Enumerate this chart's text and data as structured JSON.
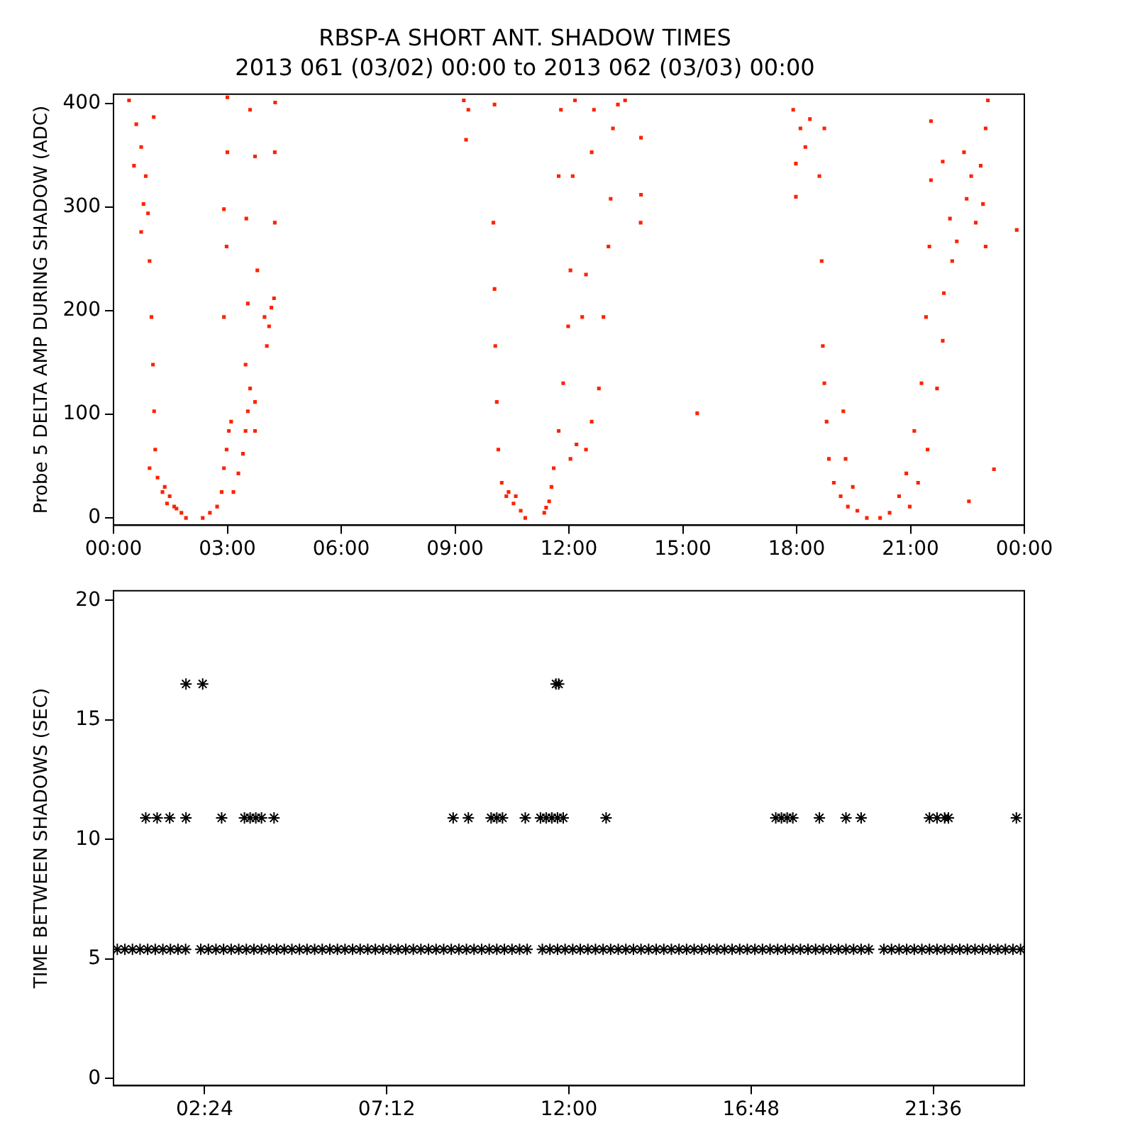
{
  "chart_data": [
    {
      "type": "scatter",
      "title": "RBSP-A SHORT ANT. SHADOW TIMES",
      "subtitle": "2013 061 (03/02) 00:00 to 2013 062 (03/03) 00:00",
      "ylabel": "Probe 5 DELTA AMP DURING SHADOW (ADC)",
      "xlim": [
        0,
        24
      ],
      "xticks": [
        {
          "value": 0,
          "label": "00:00"
        },
        {
          "value": 3,
          "label": "03:00"
        },
        {
          "value": 6,
          "label": "06:00"
        },
        {
          "value": 9,
          "label": "09:00"
        },
        {
          "value": 12,
          "label": "12:00"
        },
        {
          "value": 15,
          "label": "15:00"
        },
        {
          "value": 18,
          "label": "18:00"
        },
        {
          "value": 21,
          "label": "21:00"
        },
        {
          "value": 24,
          "label": "00:00"
        }
      ],
      "ylim": [
        -7,
        409
      ],
      "yticks": [
        0,
        100,
        200,
        300,
        400
      ],
      "grid": false,
      "marker": "square",
      "color": "#ff2200",
      "x": [
        0.41,
        0.6,
        0.73,
        0.54,
        0.85,
        0.79,
        0.91,
        0.73,
        0.95,
        1.0,
        1.04,
        1.07,
        1.1,
        1.16,
        1.29,
        1.41,
        1.6,
        1.79,
        1.91,
        1.35,
        1.48,
        1.66,
        1.06,
        0.95,
        2.35,
        2.54,
        2.73,
        2.85,
        2.91,
        2.98,
        3.04,
        3.1,
        3.16,
        3.29,
        3.41,
        3.48,
        3.54,
        3.6,
        3.48,
        3.54,
        3.5,
        3.6,
        2.91,
        2.98,
        3.0,
        3.0,
        2.91,
        3.98,
        4.1,
        4.04,
        4.16,
        4.23,
        3.73,
        3.73,
        3.79,
        4.25,
        4.25,
        4.26,
        3.73,
        9.23,
        9.35,
        9.29,
        10.04,
        10.01,
        10.04,
        10.06,
        10.1,
        10.14,
        10.23,
        10.35,
        10.54,
        10.73,
        10.85,
        10.41,
        10.6,
        11.35,
        11.48,
        11.54,
        11.4,
        11.6,
        11.73,
        11.85,
        11.98,
        12.04,
        12.1,
        12.16,
        11.79,
        11.73,
        12.04,
        12.2,
        12.45,
        12.35,
        12.45,
        12.6,
        12.66,
        12.6,
        12.79,
        12.91,
        13.04,
        13.1,
        13.16,
        13.29,
        13.48,
        13.9,
        13.9,
        13.89,
        15.38,
        17.91,
        18.1,
        17.98,
        17.98,
        18.23,
        18.35,
        18.6,
        18.66,
        18.69,
        18.73,
        18.79,
        18.85,
        18.98,
        19.16,
        19.35,
        19.6,
        19.85,
        19.23,
        19.29,
        19.48,
        18.73,
        20.2,
        20.45,
        20.7,
        20.89,
        21.1,
        21.29,
        21.41,
        21.5,
        21.54,
        21.54,
        20.98,
        21.2,
        21.45,
        21.7,
        21.85,
        21.88,
        22.04,
        22.1,
        22.22,
        22.41,
        22.48,
        22.6,
        22.72,
        22.85,
        22.91,
        22.98,
        23.04,
        22.98,
        23.2,
        22.54,
        23.8,
        21.85
      ],
      "values": [
        403,
        380,
        358,
        340,
        330,
        303,
        294,
        276,
        248,
        194,
        148,
        103,
        66,
        39,
        25,
        14,
        11,
        5,
        0,
        30,
        21,
        9,
        387,
        48,
        0,
        5,
        11,
        25,
        48,
        66,
        84,
        93,
        25,
        43,
        62,
        84,
        103,
        125,
        148,
        207,
        289,
        394,
        194,
        262,
        353,
        406,
        298,
        194,
        185,
        166,
        203,
        212,
        84,
        112,
        239,
        285,
        353,
        401,
        349,
        403,
        394,
        365,
        399,
        285,
        221,
        166,
        112,
        66,
        34,
        21,
        14,
        7,
        0,
        25,
        21,
        5,
        16,
        30,
        10,
        48,
        84,
        130,
        185,
        239,
        330,
        403,
        394,
        330,
        57,
        71,
        66,
        194,
        235,
        353,
        394,
        93,
        125,
        194,
        262,
        308,
        376,
        399,
        403,
        367,
        312,
        285,
        101,
        394,
        376,
        342,
        310,
        358,
        385,
        330,
        248,
        166,
        130,
        93,
        57,
        34,
        21,
        11,
        7,
        0,
        103,
        57,
        30,
        376,
        0,
        5,
        21,
        43,
        84,
        130,
        194,
        262,
        326,
        383,
        11,
        34,
        66,
        125,
        171,
        217,
        289,
        248,
        267,
        353,
        308,
        330,
        285,
        340,
        303,
        376,
        403,
        262,
        47,
        16,
        278,
        344
      ]
    },
    {
      "type": "scatter",
      "ylabel": "TIME BETWEEN SHADOWS (SEC)",
      "xlim": [
        0,
        24
      ],
      "xticks": [
        {
          "value": 2.4,
          "label": "02:24"
        },
        {
          "value": 7.2,
          "label": "07:12"
        },
        {
          "value": 12,
          "label": "12:00"
        },
        {
          "value": 16.8,
          "label": "16:48"
        },
        {
          "value": 21.6,
          "label": "21:36"
        }
      ],
      "ylim": [
        -0.3,
        20.4
      ],
      "yticks": [
        0,
        5,
        10,
        15,
        20
      ],
      "grid": false,
      "marker": "cross",
      "series": [
        {
          "color": "#000000",
          "x": [
            0.1,
            0.3,
            0.5,
            0.7,
            0.9,
            1.1,
            1.3,
            1.5,
            1.7,
            1.9,
            2.3,
            2.5,
            2.7,
            2.9,
            3.1,
            3.3,
            3.5,
            3.7,
            3.9,
            4.1,
            4.3,
            4.5,
            4.7,
            4.9,
            5.1,
            5.3,
            5.5,
            5.7,
            5.9,
            6.1,
            6.3,
            6.5,
            6.7,
            6.9,
            7.1,
            7.3,
            7.5,
            7.7,
            7.9,
            8.1,
            8.3,
            8.5,
            8.7,
            8.9,
            9.1,
            9.3,
            9.5,
            9.7,
            9.9,
            10.1,
            10.3,
            10.5,
            10.7,
            10.9,
            11.3,
            11.5,
            11.7,
            11.9,
            12.1,
            12.3,
            12.5,
            12.7,
            12.9,
            13.1,
            13.3,
            13.5,
            13.7,
            13.9,
            14.1,
            14.3,
            14.5,
            14.7,
            14.9,
            15.1,
            15.3,
            15.5,
            15.7,
            15.9,
            16.1,
            16.3,
            16.5,
            16.7,
            16.9,
            17.1,
            17.3,
            17.5,
            17.7,
            17.9,
            18.1,
            18.3,
            18.5,
            18.7,
            18.9,
            19.1,
            19.3,
            19.5,
            19.7,
            19.9,
            20.3,
            20.5,
            20.7,
            20.9,
            21.1,
            21.3,
            21.5,
            21.7,
            21.9,
            22.1,
            22.3,
            22.5,
            22.7,
            22.9,
            23.1,
            23.3,
            23.5,
            23.7,
            23.9
          ],
          "values": [
            5.4,
            5.4,
            5.4,
            5.4,
            5.4,
            5.4,
            5.4,
            5.4,
            5.4,
            5.4,
            5.4,
            5.4,
            5.4,
            5.4,
            5.4,
            5.4,
            5.4,
            5.4,
            5.4,
            5.4,
            5.4,
            5.4,
            5.4,
            5.4,
            5.4,
            5.4,
            5.4,
            5.4,
            5.4,
            5.4,
            5.4,
            5.4,
            5.4,
            5.4,
            5.4,
            5.4,
            5.4,
            5.4,
            5.4,
            5.4,
            5.4,
            5.4,
            5.4,
            5.4,
            5.4,
            5.4,
            5.4,
            5.4,
            5.4,
            5.4,
            5.4,
            5.4,
            5.4,
            5.4,
            5.4,
            5.4,
            5.4,
            5.4,
            5.4,
            5.4,
            5.4,
            5.4,
            5.4,
            5.4,
            5.4,
            5.4,
            5.4,
            5.4,
            5.4,
            5.4,
            5.4,
            5.4,
            5.4,
            5.4,
            5.4,
            5.4,
            5.4,
            5.4,
            5.4,
            5.4,
            5.4,
            5.4,
            5.4,
            5.4,
            5.4,
            5.4,
            5.4,
            5.4,
            5.4,
            5.4,
            5.4,
            5.4,
            5.4,
            5.4,
            5.4,
            5.4,
            5.4,
            5.4,
            5.4,
            5.4,
            5.4,
            5.4,
            5.4,
            5.4,
            5.4,
            5.4,
            5.4,
            5.4,
            5.4,
            5.4,
            5.4,
            5.4,
            5.4,
            5.4,
            5.4,
            5.4,
            5.4
          ]
        },
        {
          "color": "#000000",
          "x": [
            0.85,
            1.15,
            1.48,
            1.91,
            2.85,
            3.45,
            3.6,
            3.75,
            3.9,
            4.23,
            8.95,
            9.35,
            9.95,
            10.1,
            10.25,
            10.85,
            11.25,
            11.4,
            11.55,
            11.7,
            11.85,
            12.98,
            17.45,
            17.6,
            17.75,
            17.9,
            18.6,
            19.3,
            19.7,
            21.5,
            21.7,
            21.9,
            22.0,
            23.79
          ],
          "values": [
            10.9,
            10.9,
            10.9,
            10.9,
            10.9,
            10.9,
            10.9,
            10.9,
            10.9,
            10.9,
            10.9,
            10.9,
            10.9,
            10.9,
            10.9,
            10.9,
            10.9,
            10.9,
            10.9,
            10.9,
            10.9,
            10.9,
            10.9,
            10.9,
            10.9,
            10.9,
            10.9,
            10.9,
            10.9,
            10.9,
            10.9,
            10.9,
            10.9,
            10.9
          ]
        },
        {
          "color": "#000000",
          "x": [
            1.91,
            2.35,
            11.66,
            11.73
          ],
          "values": [
            16.5,
            16.5,
            16.5,
            16.5
          ]
        }
      ]
    }
  ]
}
